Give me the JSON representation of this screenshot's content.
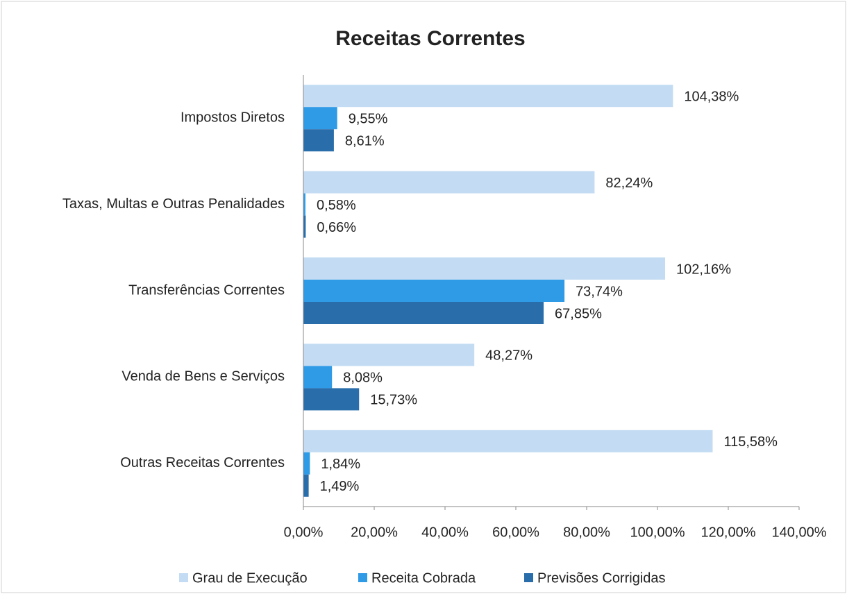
{
  "chart_data": {
    "type": "bar",
    "orientation": "horizontal",
    "title": "Receitas Correntes",
    "categories": [
      "Impostos Diretos",
      "Taxas, Multas e Outras Penalidades",
      "Transferências Correntes",
      "Venda de Bens e Serviços",
      "Outras Receitas Correntes"
    ],
    "series": [
      {
        "name": "Grau de Execução",
        "color": "#c3dcf3",
        "values": [
          104.38,
          82.24,
          102.16,
          48.27,
          115.58
        ],
        "value_labels": [
          "104,38%",
          "82,24%",
          "102,16%",
          "48,27%",
          "115,58%"
        ]
      },
      {
        "name": "Receita Cobrada",
        "color": "#2f9be6",
        "values": [
          9.55,
          0.58,
          73.74,
          8.08,
          1.84
        ],
        "value_labels": [
          "9,55%",
          "0,58%",
          "73,74%",
          "8,08%",
          "1,84%"
        ]
      },
      {
        "name": "Previsões Corrigidas",
        "color": "#2a6dab",
        "values": [
          8.61,
          0.66,
          67.85,
          15.73,
          1.49
        ],
        "value_labels": [
          "8,61%",
          "0,66%",
          "67,85%",
          "15,73%",
          "1,49%"
        ]
      }
    ],
    "xlim": [
      0,
      140
    ],
    "xticks": [
      {
        "value": 0,
        "label": "0,00%"
      },
      {
        "value": 20,
        "label": "20,00%"
      },
      {
        "value": 40,
        "label": "40,00%"
      },
      {
        "value": 60,
        "label": "60,00%"
      },
      {
        "value": 80,
        "label": "80,00%"
      },
      {
        "value": 100,
        "label": "100,00%"
      },
      {
        "value": 120,
        "label": "120,00%"
      },
      {
        "value": 140,
        "label": "140,00%"
      }
    ],
    "grid": false,
    "legend": "bottom"
  }
}
